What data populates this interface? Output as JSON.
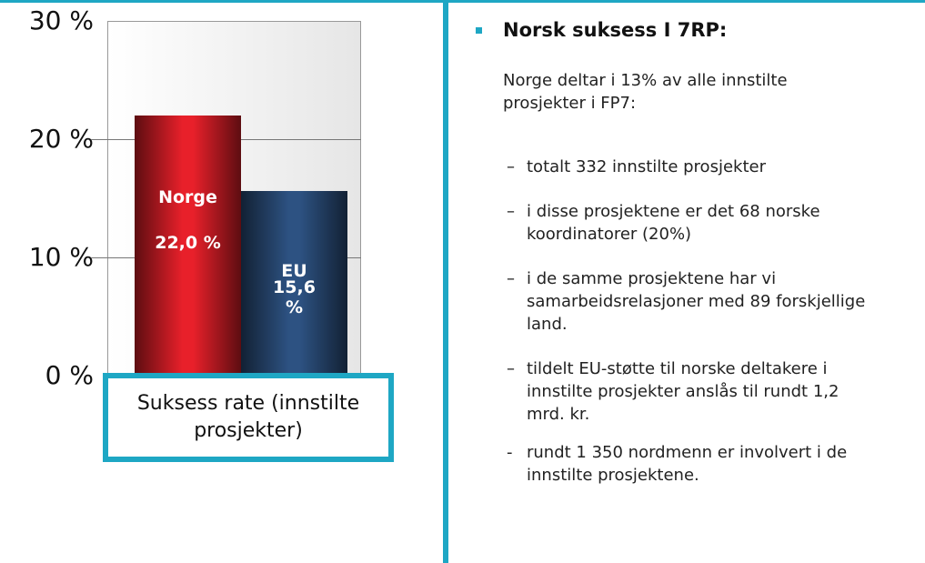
{
  "chart_data": {
    "type": "bar",
    "categories": [
      "Suksess rate (innstilte prosjekter)"
    ],
    "series": [
      {
        "name": "Norge",
        "color": "#e8202a",
        "values": [
          22.0
        ],
        "value_labels": [
          "22,0 %"
        ]
      },
      {
        "name": "EU",
        "color": "#2d5282",
        "values": [
          15.6
        ],
        "value_labels": [
          "15,6 %"
        ]
      }
    ],
    "ylim": [
      0,
      30
    ],
    "yticks": [
      {
        "value": 0,
        "label": "0 %"
      },
      {
        "value": 10,
        "label": "10 %"
      },
      {
        "value": 20,
        "label": "20 %"
      },
      {
        "value": 30,
        "label": "30 %"
      }
    ],
    "grid": true
  },
  "panel": {
    "title": "Norsk suksess I 7RP:",
    "intro": "Norge deltar i 13% av alle innstilte prosjekter i FP7:",
    "items": [
      {
        "marker": "–",
        "text": "totalt 332 innstilte prosjekter"
      },
      {
        "marker": "–",
        "text": "i disse prosjektene er det 68 norske koordinatorer (20%)"
      },
      {
        "marker": "–",
        "text": "i de samme prosjektene har vi samarbeidsrelasjoner med 89 forskjellige land."
      },
      {
        "marker": "–",
        "text": "tildelt EU-støtte til norske deltakere i innstilte prosjekter anslås til rundt 1,2 mrd. kr."
      },
      {
        "marker": "-",
        "text": "rundt 1 350 nordmenn er involvert i de innstilte prosjektene."
      }
    ]
  }
}
